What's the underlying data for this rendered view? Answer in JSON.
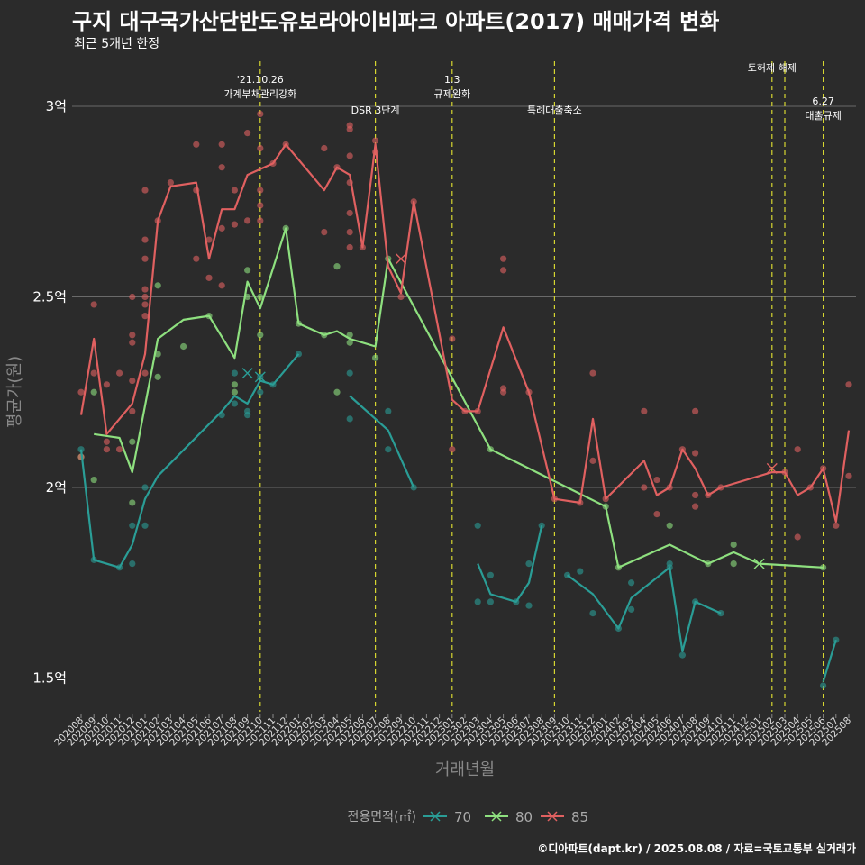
{
  "title": "구지 대구국가산단반도유보라아이비파크 아파트(2017) 매매가격 변화",
  "subtitle": "최근 5개년 한정",
  "credit": "©디아파트(dapt.kr) / 2025.08.08 / 자료=국토교통부 실거래가",
  "chart_data": {
    "type": "line",
    "xlabel": "거래년월",
    "ylabel": "평균가(원)",
    "ylim": [
      1.43,
      3.1
    ],
    "y_ticks": [
      {
        "v": 1.5,
        "label": "1.5억"
      },
      {
        "v": 2.0,
        "label": "2억"
      },
      {
        "v": 2.5,
        "label": "2.5억"
      },
      {
        "v": 3.0,
        "label": "3억"
      }
    ],
    "x": [
      "202008",
      "202009",
      "202010",
      "202011",
      "202012",
      "202101",
      "202102",
      "202103",
      "202104",
      "202105",
      "202106",
      "202107",
      "202108",
      "202109",
      "202110",
      "202111",
      "202112",
      "202201",
      "202202",
      "202203",
      "202204",
      "202205",
      "202206",
      "202207",
      "202208",
      "202209",
      "202210",
      "202211",
      "202212",
      "202301",
      "202302",
      "202303",
      "202304",
      "202305",
      "202306",
      "202307",
      "202308",
      "202309",
      "202310",
      "202311",
      "202312",
      "202401",
      "202402",
      "202403",
      "202404",
      "202405",
      "202406",
      "202407",
      "202408",
      "202409",
      "202410",
      "202411",
      "202412",
      "202501",
      "202502",
      "202503",
      "202504",
      "202505",
      "202506",
      "202507",
      "202508"
    ],
    "legend_title": "전용면적(㎡)",
    "grid": true,
    "events": [
      {
        "x": 14.0,
        "label": "'21.10.26\n가계부채관리강화",
        "row": 0
      },
      {
        "x": 23.0,
        "label": "DSR 3단계",
        "row": 2
      },
      {
        "x": 29.0,
        "label": "1.3\n규제완화",
        "row": 0
      },
      {
        "x": 37.0,
        "label": "특례대출축소",
        "row": 2
      },
      {
        "x": 54.0,
        "label": "토허제 해제",
        "row": 1
      },
      {
        "x": 55.0,
        "label": "",
        "row": 0
      },
      {
        "x": 58.0,
        "label": "6.27\n대출규제",
        "row": 3
      }
    ],
    "series": [
      {
        "name": "70",
        "color": "#2a9d96",
        "line": [
          [
            0,
            2.1
          ],
          [
            1,
            1.81
          ],
          [
            3,
            1.79
          ],
          [
            4,
            1.85
          ],
          [
            5,
            1.97
          ],
          [
            6,
            2.03
          ],
          [
            11,
            2.2
          ],
          [
            12,
            2.24
          ],
          [
            13,
            2.22
          ],
          [
            14,
            2.28
          ],
          [
            15,
            2.27
          ],
          [
            17,
            2.35
          ],
          null,
          [
            21,
            2.24
          ],
          [
            24,
            2.15
          ],
          [
            26,
            2.0
          ],
          null,
          [
            31,
            1.8
          ],
          [
            32,
            1.72
          ],
          [
            34,
            1.7
          ],
          [
            35,
            1.75
          ],
          [
            36,
            1.9
          ],
          null,
          [
            38,
            1.77
          ],
          [
            40,
            1.72
          ],
          [
            42,
            1.63
          ],
          [
            43,
            1.71
          ],
          [
            46,
            1.79
          ],
          [
            47,
            1.57
          ],
          [
            48,
            1.7
          ],
          [
            50,
            1.67
          ],
          null,
          [
            58,
            1.49
          ],
          [
            59,
            1.6
          ]
        ],
        "points": [
          [
            0,
            2.1
          ],
          [
            1,
            1.81
          ],
          [
            3,
            1.79
          ],
          [
            4,
            1.8
          ],
          [
            4,
            1.9
          ],
          [
            5,
            1.9
          ],
          [
            5,
            2.0
          ],
          [
            11,
            2.19
          ],
          [
            12,
            2.22
          ],
          [
            12,
            2.3
          ],
          [
            13,
            2.2
          ],
          [
            13,
            2.19
          ],
          [
            14,
            2.25
          ],
          [
            14,
            2.29
          ],
          [
            15,
            2.27
          ],
          [
            17,
            2.35
          ],
          [
            21,
            2.3
          ],
          [
            21,
            2.18
          ],
          [
            24,
            2.2
          ],
          [
            24,
            2.1
          ],
          [
            26,
            2.0
          ],
          [
            31,
            1.7
          ],
          [
            31,
            1.9
          ],
          [
            32,
            1.77
          ],
          [
            32,
            1.7
          ],
          [
            34,
            1.7
          ],
          [
            35,
            1.8
          ],
          [
            35,
            1.69
          ],
          [
            36,
            1.9
          ],
          [
            38,
            1.77
          ],
          [
            39,
            1.78
          ],
          [
            40,
            1.67
          ],
          [
            42,
            1.63
          ],
          [
            43,
            1.75
          ],
          [
            43,
            1.68
          ],
          [
            46,
            1.79
          ],
          [
            46,
            1.8
          ],
          [
            47,
            1.56
          ],
          [
            48,
            1.7
          ],
          [
            50,
            1.67
          ],
          [
            58,
            1.48
          ],
          [
            59,
            1.6
          ]
        ],
        "crosses": [
          [
            13,
            2.3
          ],
          [
            14,
            2.29
          ]
        ]
      },
      {
        "name": "80",
        "color": "#8ee07f",
        "line": [
          [
            1,
            2.14
          ],
          [
            3,
            2.13
          ],
          [
            4,
            2.04
          ],
          [
            6,
            2.39
          ],
          [
            8,
            2.44
          ],
          [
            10,
            2.45
          ],
          [
            12,
            2.34
          ],
          [
            13,
            2.54
          ],
          [
            14,
            2.47
          ],
          [
            16,
            2.68
          ],
          [
            17,
            2.43
          ],
          [
            19,
            2.4
          ],
          [
            20,
            2.41
          ],
          [
            21,
            2.39
          ],
          [
            23,
            2.37
          ],
          [
            24,
            2.6
          ],
          [
            32,
            2.1
          ],
          [
            41,
            1.95
          ],
          [
            42,
            1.79
          ],
          [
            46,
            1.85
          ],
          [
            49,
            1.8
          ],
          [
            51,
            1.83
          ],
          [
            53,
            1.8
          ],
          [
            58,
            1.79
          ]
        ],
        "points": [
          [
            0,
            2.08
          ],
          [
            1,
            2.25
          ],
          [
            1,
            2.02
          ],
          [
            4,
            2.12
          ],
          [
            4,
            1.96
          ],
          [
            6,
            2.53
          ],
          [
            6,
            2.29
          ],
          [
            6,
            2.35
          ],
          [
            8,
            2.37
          ],
          [
            10,
            2.45
          ],
          [
            12,
            2.27
          ],
          [
            12,
            2.25
          ],
          [
            13,
            2.57
          ],
          [
            13,
            2.5
          ],
          [
            14,
            2.4
          ],
          [
            14,
            2.5
          ],
          [
            16,
            2.68
          ],
          [
            17,
            2.43
          ],
          [
            19,
            2.4
          ],
          [
            20,
            2.58
          ],
          [
            20,
            2.25
          ],
          [
            21,
            2.4
          ],
          [
            21,
            2.38
          ],
          [
            23,
            2.34
          ],
          [
            24,
            2.6
          ],
          [
            32,
            2.1
          ],
          [
            41,
            1.95
          ],
          [
            42,
            1.79
          ],
          [
            46,
            1.9
          ],
          [
            49,
            1.8
          ],
          [
            51,
            1.85
          ],
          [
            51,
            1.8
          ],
          [
            58,
            1.79
          ]
        ],
        "crosses": [
          [
            53,
            1.8
          ]
        ]
      },
      {
        "name": "85",
        "color": "#e06060",
        "line": [
          [
            0,
            2.19
          ],
          [
            1,
            2.39
          ],
          [
            2,
            2.14
          ],
          [
            4,
            2.22
          ],
          [
            5,
            2.35
          ],
          [
            6,
            2.7
          ],
          [
            7,
            2.79
          ],
          [
            9,
            2.8
          ],
          [
            10,
            2.6
          ],
          [
            11,
            2.73
          ],
          [
            12,
            2.73
          ],
          [
            13,
            2.82
          ],
          [
            15,
            2.85
          ],
          [
            16,
            2.9
          ],
          [
            19,
            2.78
          ],
          [
            20,
            2.84
          ],
          [
            21,
            2.82
          ],
          [
            22,
            2.63
          ],
          [
            23,
            2.9
          ],
          [
            24,
            2.58
          ],
          [
            25,
            2.51
          ],
          [
            26,
            2.75
          ],
          [
            29,
            2.23
          ],
          [
            30,
            2.2
          ],
          [
            31,
            2.2
          ],
          [
            33,
            2.42
          ],
          [
            35,
            2.25
          ],
          [
            37,
            1.97
          ],
          [
            39,
            1.96
          ],
          [
            40,
            2.18
          ],
          [
            41,
            1.97
          ],
          [
            44,
            2.07
          ],
          [
            45,
            1.98
          ],
          [
            46,
            2.0
          ],
          [
            47,
            2.1
          ],
          [
            48,
            2.05
          ],
          [
            49,
            1.98
          ],
          [
            50,
            2.0
          ],
          [
            54,
            2.04
          ],
          [
            55,
            2.04
          ],
          [
            56,
            1.98
          ],
          [
            57,
            2.0
          ],
          [
            58,
            2.05
          ],
          [
            59,
            1.91
          ],
          [
            60,
            2.15
          ]
        ],
        "points": [
          [
            0,
            2.25
          ],
          [
            0,
            2.08
          ],
          [
            1,
            2.48
          ],
          [
            1,
            2.3
          ],
          [
            2,
            2.27
          ],
          [
            2,
            2.12
          ],
          [
            2,
            2.1
          ],
          [
            3,
            2.3
          ],
          [
            3,
            2.1
          ],
          [
            4,
            2.5
          ],
          [
            4,
            2.4
          ],
          [
            4,
            2.38
          ],
          [
            4,
            2.28
          ],
          [
            4,
            2.2
          ],
          [
            5,
            2.78
          ],
          [
            5,
            2.65
          ],
          [
            5,
            2.6
          ],
          [
            5,
            2.52
          ],
          [
            5,
            2.5
          ],
          [
            5,
            2.48
          ],
          [
            5,
            2.45
          ],
          [
            5,
            2.3
          ],
          [
            6,
            2.7
          ],
          [
            7,
            2.8
          ],
          [
            9,
            2.6
          ],
          [
            9,
            2.78
          ],
          [
            9,
            2.9
          ],
          [
            10,
            2.65
          ],
          [
            10,
            2.55
          ],
          [
            11,
            2.9
          ],
          [
            11,
            2.84
          ],
          [
            11,
            2.68
          ],
          [
            11,
            2.53
          ],
          [
            12,
            2.78
          ],
          [
            12,
            2.69
          ],
          [
            13,
            2.93
          ],
          [
            13,
            2.7
          ],
          [
            14,
            2.98
          ],
          [
            14,
            2.89
          ],
          [
            14,
            2.78
          ],
          [
            14,
            2.74
          ],
          [
            14,
            2.7
          ],
          [
            15,
            2.85
          ],
          [
            16,
            2.9
          ],
          [
            19,
            2.89
          ],
          [
            19,
            2.67
          ],
          [
            20,
            2.84
          ],
          [
            21,
            2.95
          ],
          [
            21,
            2.94
          ],
          [
            21,
            2.87
          ],
          [
            21,
            2.8
          ],
          [
            21,
            2.72
          ],
          [
            21,
            2.67
          ],
          [
            21,
            2.63
          ],
          [
            22,
            2.63
          ],
          [
            23,
            2.91
          ],
          [
            23,
            2.88
          ],
          [
            25,
            2.5
          ],
          [
            26,
            2.75
          ],
          [
            29,
            2.39
          ],
          [
            29,
            2.1
          ],
          [
            30,
            2.2
          ],
          [
            31,
            2.2
          ],
          [
            33,
            2.6
          ],
          [
            33,
            2.57
          ],
          [
            33,
            2.26
          ],
          [
            33,
            2.25
          ],
          [
            35,
            2.25
          ],
          [
            37,
            1.97
          ],
          [
            39,
            1.96
          ],
          [
            40,
            2.3
          ],
          [
            40,
            2.07
          ],
          [
            41,
            1.97
          ],
          [
            44,
            2.2
          ],
          [
            44,
            2.0
          ],
          [
            45,
            2.02
          ],
          [
            45,
            1.93
          ],
          [
            46,
            2.0
          ],
          [
            47,
            2.1
          ],
          [
            48,
            2.2
          ],
          [
            48,
            2.09
          ],
          [
            48,
            1.98
          ],
          [
            48,
            1.95
          ],
          [
            49,
            1.98
          ],
          [
            50,
            2.0
          ],
          [
            55,
            2.04
          ],
          [
            56,
            2.1
          ],
          [
            56,
            1.87
          ],
          [
            57,
            2.0
          ],
          [
            58,
            2.05
          ],
          [
            59,
            1.9
          ],
          [
            60,
            2.27
          ],
          [
            60,
            2.03
          ]
        ],
        "crosses": [
          [
            25,
            2.6
          ],
          [
            54,
            2.05
          ]
        ]
      }
    ]
  }
}
